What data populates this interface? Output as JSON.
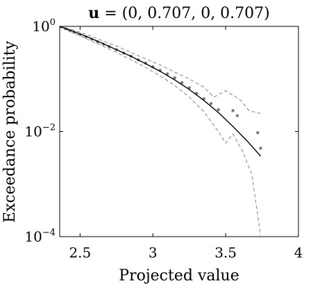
{
  "chart_data": {
    "type": "line",
    "title": {
      "vector_symbol": "u",
      "equals": " = ",
      "value": "(0, 0.707, 0, 0.707)"
    },
    "xlabel": "Projected value",
    "ylabel": "Exceedance probability",
    "xlim": [
      2.36,
      4.0
    ],
    "ylim": [
      0.0001,
      1
    ],
    "yscale": "log",
    "grid": false,
    "xticks": [
      {
        "value": 2.5,
        "label": "2.5"
      },
      {
        "value": 3.0,
        "label": "3"
      },
      {
        "value": 3.5,
        "label": "3.5"
      },
      {
        "value": 4.0,
        "label": "4"
      }
    ],
    "yticks": [
      {
        "value": 1,
        "base": "10",
        "exp": "0"
      },
      {
        "value": 0.01,
        "base": "10",
        "exp": "−2"
      },
      {
        "value": 0.0001,
        "base": "10",
        "exp": "−4"
      }
    ],
    "series": [
      {
        "role": "fitted-curve",
        "style": "solid",
        "color": "#000000",
        "x": [
          2.36,
          2.45,
          2.55,
          2.65,
          2.75,
          2.85,
          2.95,
          3.05,
          3.15,
          3.25,
          3.35,
          3.45,
          3.55,
          3.65,
          3.74
        ],
        "y": [
          1.0,
          0.81,
          0.63,
          0.48,
          0.36,
          0.27,
          0.195,
          0.14,
          0.096,
          0.063,
          0.039,
          0.023,
          0.0125,
          0.0065,
          0.0034
        ]
      },
      {
        "role": "confidence-upper",
        "style": "dashed",
        "color": "#8c8c8c",
        "x": [
          2.36,
          2.45,
          2.55,
          2.65,
          2.75,
          2.85,
          2.95,
          3.05,
          3.15,
          3.25,
          3.35,
          3.42,
          3.5,
          3.6,
          3.66,
          3.74
        ],
        "y": [
          1.0,
          0.86,
          0.69,
          0.54,
          0.42,
          0.32,
          0.24,
          0.185,
          0.135,
          0.1,
          0.07,
          0.045,
          0.06,
          0.04,
          0.025,
          0.022
        ]
      },
      {
        "role": "confidence-lower",
        "style": "dashed",
        "color": "#8c8c8c",
        "x": [
          2.36,
          2.45,
          2.55,
          2.65,
          2.75,
          2.85,
          2.95,
          3.05,
          3.15,
          3.25,
          3.35,
          3.45,
          3.5,
          3.55,
          3.62,
          3.68,
          3.74
        ],
        "y": [
          1.0,
          0.76,
          0.57,
          0.43,
          0.32,
          0.23,
          0.165,
          0.115,
          0.075,
          0.045,
          0.024,
          0.01,
          0.006,
          0.009,
          0.004,
          0.0015,
          0.000105
        ]
      },
      {
        "role": "empirical-points",
        "style": "markers",
        "color": "#7a7a7a",
        "x": [
          2.37,
          2.4,
          2.43,
          2.46,
          2.5,
          2.54,
          2.58,
          2.62,
          2.66,
          2.7,
          2.75,
          2.8,
          2.85,
          2.9,
          2.95,
          3.0,
          3.05,
          3.1,
          3.15,
          3.2,
          3.25,
          3.3,
          3.35,
          3.4,
          3.45,
          3.55,
          3.58,
          3.72,
          3.74
        ],
        "y": [
          0.98,
          0.9,
          0.83,
          0.77,
          0.7,
          0.63,
          0.57,
          0.51,
          0.46,
          0.41,
          0.36,
          0.31,
          0.27,
          0.23,
          0.2,
          0.17,
          0.145,
          0.125,
          0.105,
          0.085,
          0.068,
          0.053,
          0.042,
          0.034,
          0.026,
          0.025,
          0.02,
          0.0095,
          0.0048
        ]
      }
    ]
  }
}
